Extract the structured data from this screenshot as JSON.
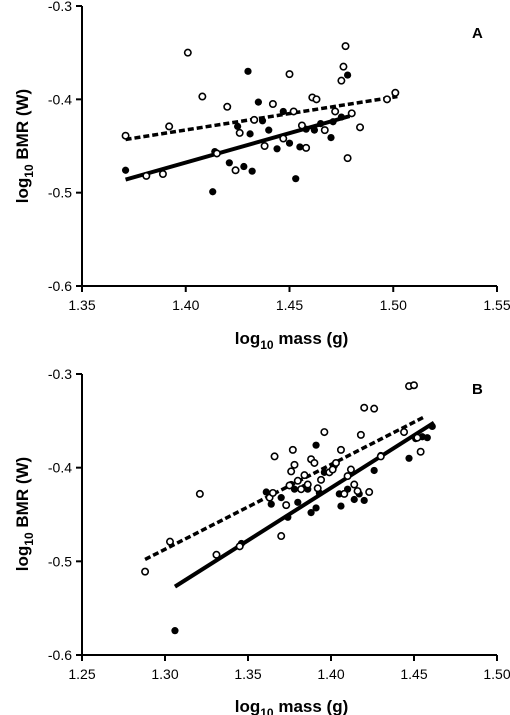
{
  "chart_data": [
    {
      "type": "scatter",
      "panel_label": "A",
      "xlabel_main": "log",
      "xlabel_sub": "10",
      "xlabel_rest": " mass (g)",
      "ylabel_main": "log",
      "ylabel_sub": "10",
      "ylabel_rest": " BMR (W)",
      "xlim": [
        1.35,
        1.55
      ],
      "ylim": [
        -0.6,
        -0.3
      ],
      "xticks": [
        "1.35",
        "1.40",
        "1.45",
        "1.50",
        "1.55"
      ],
      "yticks": [
        "-0.3",
        "-0.4",
        "-0.5",
        "-0.6"
      ],
      "xtick_values": [
        1.35,
        1.4,
        1.45,
        1.5,
        1.55
      ],
      "ytick_values": [
        -0.3,
        -0.4,
        -0.5,
        -0.6
      ],
      "series": [
        {
          "marker": "filled",
          "line_style": "solid",
          "fit": [
            [
              1.371,
              -0.486
            ],
            [
              1.479,
              -0.418
            ]
          ],
          "points": [
            [
              1.371,
              -0.476
            ],
            [
              1.413,
              -0.499
            ],
            [
              1.414,
              -0.456
            ],
            [
              1.421,
              -0.468
            ],
            [
              1.425,
              -0.429
            ],
            [
              1.428,
              -0.472
            ],
            [
              1.43,
              -0.37
            ],
            [
              1.431,
              -0.437
            ],
            [
              1.432,
              -0.477
            ],
            [
              1.435,
              -0.403
            ],
            [
              1.437,
              -0.423
            ],
            [
              1.44,
              -0.433
            ],
            [
              1.444,
              -0.453
            ],
            [
              1.447,
              -0.413
            ],
            [
              1.45,
              -0.447
            ],
            [
              1.453,
              -0.485
            ],
            [
              1.455,
              -0.451
            ],
            [
              1.458,
              -0.432
            ],
            [
              1.462,
              -0.433
            ],
            [
              1.465,
              -0.426
            ],
            [
              1.47,
              -0.441
            ],
            [
              1.471,
              -0.424
            ],
            [
              1.475,
              -0.419
            ],
            [
              1.478,
              -0.374
            ]
          ]
        },
        {
          "marker": "open",
          "line_style": "dashed",
          "fit": [
            [
              1.371,
              -0.443
            ],
            [
              1.502,
              -0.397
            ]
          ],
          "points": [
            [
              1.371,
              -0.439
            ],
            [
              1.381,
              -0.482
            ],
            [
              1.389,
              -0.48
            ],
            [
              1.392,
              -0.429
            ],
            [
              1.401,
              -0.35
            ],
            [
              1.408,
              -0.397
            ],
            [
              1.415,
              -0.458
            ],
            [
              1.42,
              -0.408
            ],
            [
              1.424,
              -0.476
            ],
            [
              1.426,
              -0.436
            ],
            [
              1.433,
              -0.422
            ],
            [
              1.438,
              -0.45
            ],
            [
              1.442,
              -0.405
            ],
            [
              1.447,
              -0.442
            ],
            [
              1.45,
              -0.373
            ],
            [
              1.452,
              -0.413
            ],
            [
              1.456,
              -0.428
            ],
            [
              1.458,
              -0.452
            ],
            [
              1.461,
              -0.398
            ],
            [
              1.463,
              -0.4
            ],
            [
              1.467,
              -0.433
            ],
            [
              1.472,
              -0.413
            ],
            [
              1.475,
              -0.38
            ],
            [
              1.476,
              -0.365
            ],
            [
              1.477,
              -0.343
            ],
            [
              1.478,
              -0.463
            ],
            [
              1.48,
              -0.415
            ],
            [
              1.484,
              -0.43
            ],
            [
              1.497,
              -0.4
            ],
            [
              1.501,
              -0.393
            ]
          ]
        }
      ]
    },
    {
      "type": "scatter",
      "panel_label": "B",
      "xlabel_main": "log",
      "xlabel_sub": "10",
      "xlabel_rest": " mass (g)",
      "ylabel_main": "log",
      "ylabel_sub": "10",
      "ylabel_rest": " BMR (W)",
      "xlim": [
        1.25,
        1.5
      ],
      "ylim": [
        -0.6,
        -0.3
      ],
      "xticks": [
        "1.25",
        "1.30",
        "1.35",
        "1.40",
        "1.45",
        "1.50"
      ],
      "yticks": [
        "-0.3",
        "-0.4",
        "-0.5",
        "-0.6"
      ],
      "xtick_values": [
        1.25,
        1.3,
        1.35,
        1.4,
        1.45,
        1.5
      ],
      "ytick_values": [
        -0.3,
        -0.4,
        -0.5,
        -0.6
      ],
      "series": [
        {
          "marker": "filled",
          "line_style": "solid",
          "fit": [
            [
              1.306,
              -0.527
            ],
            [
              1.462,
              -0.352
            ]
          ],
          "points": [
            [
              1.306,
              -0.574
            ],
            [
              1.346,
              -0.481
            ],
            [
              1.361,
              -0.426
            ],
            [
              1.364,
              -0.439
            ],
            [
              1.37,
              -0.432
            ],
            [
              1.374,
              -0.453
            ],
            [
              1.376,
              -0.418
            ],
            [
              1.378,
              -0.423
            ],
            [
              1.38,
              -0.437
            ],
            [
              1.384,
              -0.421
            ],
            [
              1.386,
              -0.423
            ],
            [
              1.388,
              -0.448
            ],
            [
              1.391,
              -0.443
            ],
            [
              1.393,
              -0.427
            ],
            [
              1.396,
              -0.405
            ],
            [
              1.402,
              -0.398
            ],
            [
              1.405,
              -0.428
            ],
            [
              1.406,
              -0.441
            ],
            [
              1.41,
              -0.423
            ],
            [
              1.414,
              -0.434
            ],
            [
              1.417,
              -0.428
            ],
            [
              1.42,
              -0.435
            ],
            [
              1.426,
              -0.403
            ],
            [
              1.43,
              -0.387
            ],
            [
              1.447,
              -0.39
            ],
            [
              1.451,
              -0.369
            ],
            [
              1.455,
              -0.367
            ],
            [
              1.458,
              -0.368
            ],
            [
              1.461,
              -0.356
            ],
            [
              1.391,
              -0.376
            ]
          ]
        },
        {
          "marker": "open",
          "line_style": "dashed",
          "fit": [
            [
              1.288,
              -0.498
            ],
            [
              1.456,
              -0.346
            ]
          ],
          "points": [
            [
              1.288,
              -0.511
            ],
            [
              1.303,
              -0.479
            ],
            [
              1.321,
              -0.428
            ],
            [
              1.331,
              -0.493
            ],
            [
              1.345,
              -0.484
            ],
            [
              1.363,
              -0.432
            ],
            [
              1.365,
              -0.427
            ],
            [
              1.366,
              -0.388
            ],
            [
              1.37,
              -0.473
            ],
            [
              1.373,
              -0.44
            ],
            [
              1.375,
              -0.419
            ],
            [
              1.376,
              -0.404
            ],
            [
              1.377,
              -0.381
            ],
            [
              1.378,
              -0.397
            ],
            [
              1.38,
              -0.414
            ],
            [
              1.382,
              -0.423
            ],
            [
              1.384,
              -0.408
            ],
            [
              1.386,
              -0.418
            ],
            [
              1.388,
              -0.391
            ],
            [
              1.39,
              -0.395
            ],
            [
              1.392,
              -0.422
            ],
            [
              1.394,
              -0.413
            ],
            [
              1.396,
              -0.362
            ],
            [
              1.399,
              -0.405
            ],
            [
              1.401,
              -0.402
            ],
            [
              1.403,
              -0.395
            ],
            [
              1.406,
              -0.381
            ],
            [
              1.408,
              -0.428
            ],
            [
              1.41,
              -0.409
            ],
            [
              1.412,
              -0.402
            ],
            [
              1.414,
              -0.418
            ],
            [
              1.416,
              -0.425
            ],
            [
              1.418,
              -0.365
            ],
            [
              1.42,
              -0.336
            ],
            [
              1.423,
              -0.426
            ],
            [
              1.426,
              -0.337
            ],
            [
              1.43,
              -0.388
            ],
            [
              1.444,
              -0.362
            ],
            [
              1.447,
              -0.313
            ],
            [
              1.45,
              -0.312
            ],
            [
              1.452,
              -0.368
            ],
            [
              1.454,
              -0.383
            ]
          ]
        }
      ]
    }
  ]
}
